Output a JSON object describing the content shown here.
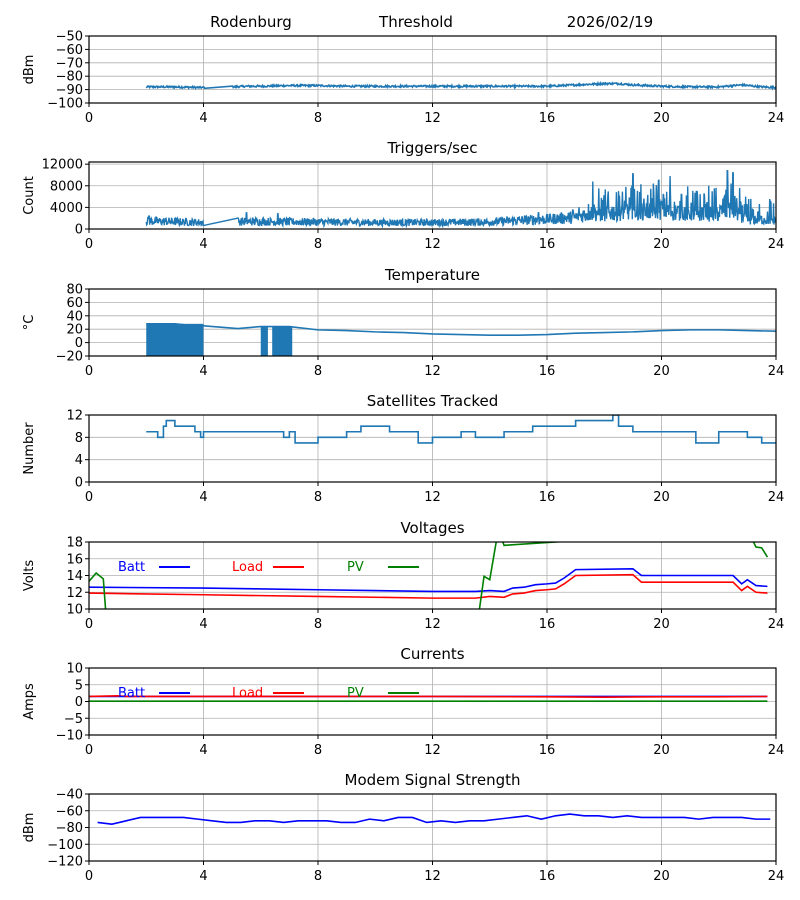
{
  "header": {
    "station": "Rodenburg",
    "mode": "Threshold",
    "date": "2026/02/19"
  },
  "chart_data": [
    {
      "type": "line",
      "title": "",
      "xlabel": "",
      "ylabel": "dBm",
      "xlim": [
        0,
        24
      ],
      "ylim": [
        -100,
        -50
      ],
      "xticks": [
        0,
        4,
        8,
        12,
        16,
        20,
        24
      ],
      "yticks": [
        -100,
        -90,
        -80,
        -70,
        -60,
        -50
      ],
      "grid": true,
      "series": [
        {
          "name": "threshold",
          "color": "#1f77b4",
          "style": "noisy",
          "x": [
            2.0,
            2.5,
            3.0,
            4.0,
            5.0,
            5.5,
            6.0,
            7.0,
            8.0,
            9.0,
            10.0,
            11.0,
            12.0,
            13.0,
            14.0,
            15.0,
            16.0,
            17.0,
            18.0,
            18.5,
            19.0,
            20.0,
            21.0,
            22.0,
            22.8,
            23.5,
            24.0
          ],
          "y": [
            -88,
            -88,
            -88,
            -88.5,
            -88,
            -87.5,
            -87.5,
            -87,
            -87,
            -87.5,
            -87.5,
            -87.5,
            -87.5,
            -87.5,
            -87.5,
            -87.5,
            -87.5,
            -86.5,
            -85.5,
            -85.5,
            -86.5,
            -87.5,
            -88,
            -88,
            -86.5,
            -88,
            -88.5
          ]
        }
      ]
    },
    {
      "type": "line",
      "title": "Triggers/sec",
      "xlabel": "",
      "ylabel": "Count",
      "xlim": [
        0,
        24
      ],
      "ylim": [
        0,
        12400
      ],
      "xticks": [
        0,
        4,
        8,
        12,
        16,
        20,
        24
      ],
      "yticks": [
        0,
        4000,
        8000,
        12000
      ],
      "grid": true,
      "series": [
        {
          "name": "triggers",
          "color": "#1f77b4",
          "style": "spiky",
          "x": [
            2.0,
            4.0,
            5.2,
            8.0,
            10.0,
            12.0,
            14.0,
            15.0,
            16.0,
            17.0,
            17.5,
            18.0,
            19.0,
            20.0,
            20.5,
            21.0,
            22.0,
            22.4,
            23.0,
            24.0
          ],
          "y": [
            1500,
            1200,
            1400,
            1300,
            1200,
            1200,
            1300,
            1600,
            1800,
            2200,
            3000,
            3000,
            3500,
            3500,
            3200,
            3000,
            3000,
            4000,
            1800,
            1700
          ],
          "peaks": [
            [
              2.1,
              2400
            ],
            [
              5.5,
              3000
            ],
            [
              6.6,
              2800
            ],
            [
              15.7,
              3000
            ],
            [
              16.9,
              3500
            ],
            [
              17.6,
              8800
            ],
            [
              18.5,
              7000
            ],
            [
              19.0,
              10200
            ],
            [
              19.9,
              9000
            ],
            [
              20.3,
              9800
            ],
            [
              20.7,
              6400
            ],
            [
              21.5,
              6300
            ],
            [
              22.3,
              10800
            ],
            [
              22.5,
              10400
            ],
            [
              23.2,
              3500
            ]
          ]
        }
      ]
    },
    {
      "type": "line",
      "title": "Temperature",
      "xlabel": "",
      "ylabel": "°C",
      "xlim": [
        0,
        24
      ],
      "ylim": [
        -20,
        80
      ],
      "xticks": [
        0,
        4,
        8,
        12,
        16,
        20,
        24
      ],
      "yticks": [
        -20,
        0,
        20,
        40,
        60,
        80
      ],
      "grid": true,
      "series": [
        {
          "name": "temperature",
          "color": "#1f77b4",
          "x": [
            2.0,
            3.0,
            3.5,
            4.0,
            5.2,
            6.0,
            7.0,
            8.0,
            9.0,
            10.0,
            11.0,
            12.0,
            13.0,
            14.0,
            15.0,
            16.0,
            17.0,
            18.0,
            19.0,
            20.0,
            21.0,
            22.0,
            23.0,
            24.0
          ],
          "y": [
            28,
            28,
            26,
            25,
            21,
            24,
            24,
            19,
            18,
            16,
            15,
            13,
            12,
            11,
            11,
            12,
            14,
            15,
            16,
            18,
            19,
            19,
            18,
            17
          ],
          "filled_blocks": [
            [
              2.0,
              4.0
            ],
            [
              6.0,
              6.25
            ],
            [
              6.4,
              7.1
            ]
          ],
          "fill_floor": -20
        }
      ]
    },
    {
      "type": "line",
      "title": "Satellites Tracked",
      "xlabel": "",
      "ylabel": "Number",
      "xlim": [
        0,
        24
      ],
      "ylim": [
        0,
        12
      ],
      "xticks": [
        0,
        4,
        8,
        12,
        16,
        20,
        24
      ],
      "yticks": [
        0,
        4,
        8,
        12
      ],
      "grid": true,
      "series": [
        {
          "name": "satellites",
          "color": "#1f77b4",
          "style": "step",
          "x": [
            2.0,
            2.4,
            2.6,
            2.7,
            3.0,
            3.3,
            3.7,
            3.9,
            4.0,
            6.5,
            6.8,
            7.0,
            7.2,
            7.8,
            8.0,
            8.5,
            9.0,
            9.5,
            10.0,
            10.5,
            11.5,
            12.0,
            12.5,
            13.0,
            13.5,
            14.5,
            15.0,
            15.5,
            16.0,
            16.5,
            17.0,
            18.0,
            18.3,
            18.5,
            19.0,
            20.0,
            20.5,
            21.0,
            21.2,
            22.0,
            23.0,
            23.5,
            24.0
          ],
          "y": [
            9,
            8,
            10,
            11,
            10,
            10,
            9,
            8,
            9,
            9,
            8,
            9,
            7,
            7,
            8,
            8,
            9,
            10,
            10,
            9,
            7,
            8,
            8,
            9,
            8,
            9,
            9,
            10,
            10,
            10,
            11,
            11,
            12,
            10,
            9,
            9,
            9,
            9,
            7,
            9,
            8,
            7,
            7
          ]
        }
      ]
    },
    {
      "type": "line",
      "title": "Voltages",
      "xlabel": "",
      "ylabel": "Volts",
      "xlim": [
        0,
        24
      ],
      "ylim": [
        10,
        18
      ],
      "xticks": [
        0,
        4,
        8,
        12,
        16,
        20,
        24
      ],
      "yticks": [
        10,
        12,
        14,
        16,
        18
      ],
      "grid": true,
      "legend": "top-left-inline",
      "series": [
        {
          "name": "Batt",
          "color": "#0000ff",
          "x": [
            0,
            4,
            8,
            12,
            13.5,
            14.0,
            14.5,
            14.8,
            15.2,
            15.6,
            16.0,
            16.3,
            16.6,
            17.0,
            19.0,
            19.3,
            22.5,
            22.8,
            23.0,
            23.3,
            23.7
          ],
          "y": [
            12.6,
            12.5,
            12.3,
            12.1,
            12.1,
            12.2,
            12.1,
            12.5,
            12.6,
            12.9,
            13.0,
            13.1,
            13.7,
            14.7,
            14.8,
            14.0,
            14.0,
            13.0,
            13.5,
            12.8,
            12.7
          ]
        },
        {
          "name": "Load",
          "color": "#ff0000",
          "x": [
            0,
            4,
            8,
            12,
            13.5,
            14.0,
            14.5,
            14.8,
            15.2,
            15.6,
            16.0,
            16.3,
            16.6,
            17.0,
            19.0,
            19.3,
            22.5,
            22.8,
            23.0,
            23.3,
            23.7
          ],
          "y": [
            11.9,
            11.7,
            11.5,
            11.3,
            11.3,
            11.5,
            11.4,
            11.8,
            11.9,
            12.2,
            12.3,
            12.4,
            13.0,
            14.0,
            14.1,
            13.2,
            13.2,
            12.2,
            12.7,
            12.0,
            11.9
          ]
        },
        {
          "name": "PV",
          "color": "#008000",
          "x": [
            0,
            0.25,
            0.5,
            0.6,
            13.6,
            13.8,
            14.0,
            14.3,
            14.5,
            23.0,
            23.3,
            23.5,
            23.7
          ],
          "y": [
            13.3,
            14.3,
            13.6,
            9.0,
            9.0,
            13.9,
            13.5,
            19.5,
            17.6,
            19.5,
            17.4,
            17.3,
            16.2
          ]
        }
      ]
    },
    {
      "type": "line",
      "title": "Currents",
      "xlabel": "",
      "ylabel": "Amps",
      "xlim": [
        0,
        24
      ],
      "ylim": [
        -10,
        10
      ],
      "xticks": [
        0,
        4,
        8,
        12,
        16,
        20,
        24
      ],
      "yticks": [
        -10,
        -5,
        0,
        5,
        10
      ],
      "grid": true,
      "legend": "top-left-inline",
      "series": [
        {
          "name": "Batt",
          "color": "#0000ff",
          "x": [
            0,
            23.7
          ],
          "y": [
            1.5,
            1.5
          ]
        },
        {
          "name": "Load",
          "color": "#ff0000",
          "x": [
            0,
            1.0,
            1.3,
            8,
            12,
            16,
            18,
            20,
            22,
            23.7
          ],
          "y": [
            1.5,
            1.7,
            1.5,
            1.5,
            1.5,
            1.4,
            1.3,
            1.4,
            1.4,
            1.5
          ]
        },
        {
          "name": "PV",
          "color": "#008000",
          "x": [
            0,
            23.7
          ],
          "y": [
            0.1,
            0.1
          ]
        }
      ]
    },
    {
      "type": "line",
      "title": "Modem Signal Strength",
      "xlabel": "",
      "ylabel": "dBm",
      "xlim": [
        0,
        24
      ],
      "ylim": [
        -120,
        -40
      ],
      "xticks": [
        0,
        4,
        8,
        12,
        16,
        20,
        24
      ],
      "yticks": [
        -120,
        -100,
        -80,
        -60,
        -40
      ],
      "grid": true,
      "series": [
        {
          "name": "modem",
          "color": "#0000ff",
          "x": [
            0.3,
            0.8,
            1.3,
            1.8,
            2.3,
            2.8,
            3.3,
            3.8,
            4.3,
            4.8,
            5.3,
            5.8,
            6.3,
            6.8,
            7.3,
            7.8,
            8.3,
            8.8,
            9.3,
            9.8,
            10.3,
            10.8,
            11.3,
            11.8,
            12.3,
            12.8,
            13.3,
            13.8,
            14.3,
            14.8,
            15.3,
            15.8,
            16.3,
            16.8,
            17.3,
            17.8,
            18.3,
            18.8,
            19.3,
            19.8,
            20.3,
            20.8,
            21.3,
            21.8,
            22.3,
            22.8,
            23.3,
            23.8
          ],
          "y": [
            -74,
            -76,
            -72,
            -68,
            -68,
            -68,
            -68,
            -70,
            -72,
            -74,
            -74,
            -72,
            -72,
            -74,
            -72,
            -72,
            -72,
            -74,
            -74,
            -70,
            -72,
            -68,
            -68,
            -74,
            -72,
            -74,
            -72,
            -72,
            -70,
            -68,
            -66,
            -70,
            -66,
            -64,
            -66,
            -66,
            -68,
            -66,
            -68,
            -68,
            -68,
            -68,
            -70,
            -68,
            -68,
            -68,
            -70,
            -70
          ]
        }
      ]
    }
  ]
}
